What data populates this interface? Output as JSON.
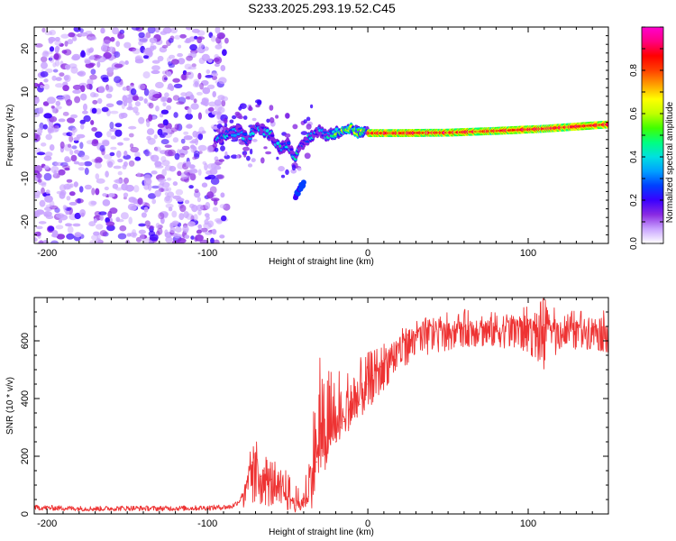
{
  "title": "S233.2025.293.19.52.C45",
  "chart_data": [
    {
      "type": "heatmap",
      "name": "spectrogram",
      "xlabel": "Height of straight line (km)",
      "ylabel": "Frequency (Hz)",
      "xlim": [
        -208,
        150
      ],
      "ylim": [
        -25,
        25
      ],
      "xticks": [
        -200,
        -100,
        0,
        100
      ],
      "yticks": [
        -20,
        -10,
        0,
        10,
        20
      ],
      "noise_region_x": [
        -208,
        -88
      ],
      "ridge": {
        "x": [
          -95,
          -90,
          -85,
          -80,
          -75,
          -70,
          -65,
          -60,
          -55,
          -50,
          -45,
          -40,
          -35,
          -30,
          -25,
          -20,
          -15,
          -10,
          -5,
          0,
          20,
          50,
          80,
          110,
          130,
          150
        ],
        "freq_hz": [
          -1,
          0,
          0.5,
          1,
          -1,
          2,
          1,
          0,
          -3,
          -2,
          -5,
          -2,
          0,
          1,
          0,
          0.5,
          1.5,
          1.5,
          0.5,
          0.5,
          0.5,
          0.6,
          1,
          1.5,
          2,
          2.5
        ]
      },
      "side_lobe": {
        "x": [
          -45,
          -40
        ],
        "freq_hz": [
          -14,
          -11
        ]
      },
      "colorbar": {
        "label": "Normalized spectral amplitude",
        "range": [
          0,
          1
        ],
        "ticks": [
          0.0,
          0.2,
          0.4,
          0.6,
          0.8
        ],
        "tick_labels": [
          "0.0",
          "0.2",
          "0.4",
          "0.6",
          "0.8"
        ],
        "colors": [
          "#ffffff",
          "#c9a4ff",
          "#8a2be2",
          "#3a00ff",
          "#0040ff",
          "#00a0ff",
          "#00e0e0",
          "#00ff80",
          "#40ff00",
          "#c0ff00",
          "#ffff00",
          "#ffa000",
          "#ff4000",
          "#ff0000",
          "#ff0080",
          "#ff00d0"
        ]
      }
    },
    {
      "type": "line",
      "name": "snr",
      "xlabel": "Height of straight line (km)",
      "ylabel": "SNR (10 * v/v)",
      "xlim": [
        -208,
        150
      ],
      "ylim": [
        0,
        750
      ],
      "xticks": [
        -200,
        -100,
        0,
        100
      ],
      "yticks": [
        0,
        200,
        400,
        600
      ],
      "line_color": "#ee3333",
      "series": [
        {
          "name": "SNR",
          "x": [
            -208,
            -190,
            -170,
            -150,
            -130,
            -110,
            -95,
            -85,
            -80,
            -75,
            -72,
            -70,
            -67,
            -65,
            -62,
            -60,
            -57,
            -55,
            -52,
            -50,
            -47,
            -45,
            -42,
            -40,
            -37,
            -35,
            -32,
            -30,
            -28,
            -25,
            -22,
            -20,
            -17,
            -15,
            -12,
            -10,
            -7,
            -5,
            -2,
            0,
            3,
            5,
            8,
            10,
            13,
            15,
            20,
            25,
            30,
            40,
            50,
            60,
            70,
            80,
            90,
            100,
            105,
            110,
            120,
            130,
            140,
            150
          ],
          "values": [
            22,
            20,
            18,
            20,
            19,
            20,
            22,
            25,
            45,
            110,
            180,
            200,
            130,
            150,
            95,
            120,
            80,
            95,
            70,
            60,
            45,
            30,
            25,
            40,
            60,
            90,
            180,
            280,
            200,
            240,
            260,
            250,
            300,
            320,
            300,
            340,
            350,
            380,
            420,
            450,
            480,
            500,
            510,
            540,
            560,
            580,
            600,
            620,
            630,
            650,
            640,
            650,
            660,
            650,
            665,
            670,
            640,
            655,
            645,
            650,
            660,
            650
          ]
        }
      ],
      "spike_envelope": {
        "x": [
          -78,
          -73,
          -70,
          -66,
          -60,
          -55,
          -50,
          -44,
          -40,
          -35,
          -32,
          -30,
          -28,
          -25,
          -22,
          -18,
          -15,
          -10,
          -5,
          0,
          5,
          10,
          15,
          20,
          30,
          45,
          60,
          80,
          100,
          110,
          120,
          140,
          150
        ],
        "hi": [
          50,
          230,
          270,
          220,
          200,
          170,
          150,
          90,
          100,
          280,
          560,
          620,
          450,
          500,
          540,
          520,
          500,
          510,
          540,
          560,
          580,
          600,
          620,
          640,
          670,
          700,
          710,
          700,
          720,
          750,
          700,
          720,
          700
        ],
        "lo": [
          15,
          25,
          30,
          30,
          25,
          15,
          10,
          5,
          5,
          20,
          40,
          100,
          120,
          160,
          200,
          250,
          270,
          300,
          330,
          360,
          400,
          430,
          470,
          500,
          540,
          560,
          580,
          580,
          560,
          500,
          570,
          570,
          560
        ]
      }
    }
  ]
}
